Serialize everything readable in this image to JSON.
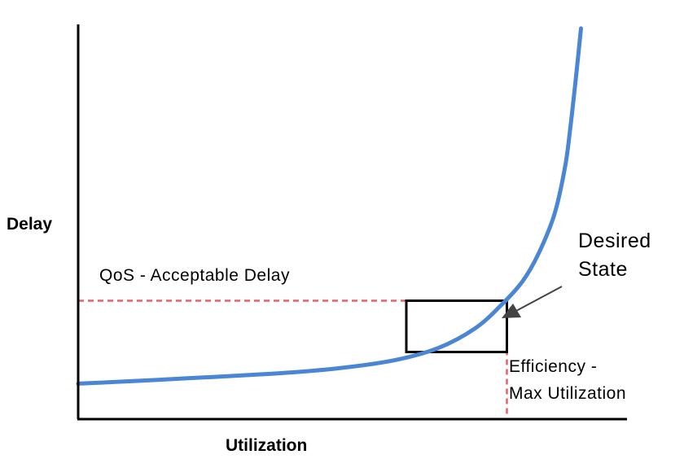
{
  "chart_data": {
    "type": "line",
    "xlabel": "Utilization",
    "ylabel": "Delay",
    "series": [
      {
        "color": "#4a86d4",
        "x": [
          0,
          0.1,
          0.2,
          0.3,
          0.4,
          0.5,
          0.6,
          0.68,
          0.75,
          0.8,
          0.84,
          0.87,
          0.9,
          0.92,
          0.93,
          0.94,
          0.95
        ],
        "y": [
          0.09,
          0.096,
          0.103,
          0.11,
          0.118,
          0.13,
          0.15,
          0.18,
          0.23,
          0.29,
          0.35,
          0.42,
          0.52,
          0.64,
          0.74,
          0.86,
          0.99
        ]
      }
    ],
    "annotations": {
      "qos_label": "QoS - Acceptable Delay",
      "desired_state_line1": "Desired",
      "desired_state_line2": "State",
      "efficiency_line1": "Efficiency -",
      "efficiency_line2": "Max Utilization"
    },
    "reference_lines": {
      "acceptable_delay": 0.3,
      "max_utilization": 0.81,
      "color": "#e8606a"
    },
    "box": {
      "x_from": 0.62,
      "x_to": 0.81,
      "y_from": 0.17,
      "y_to": 0.3,
      "color": "#000000"
    }
  }
}
